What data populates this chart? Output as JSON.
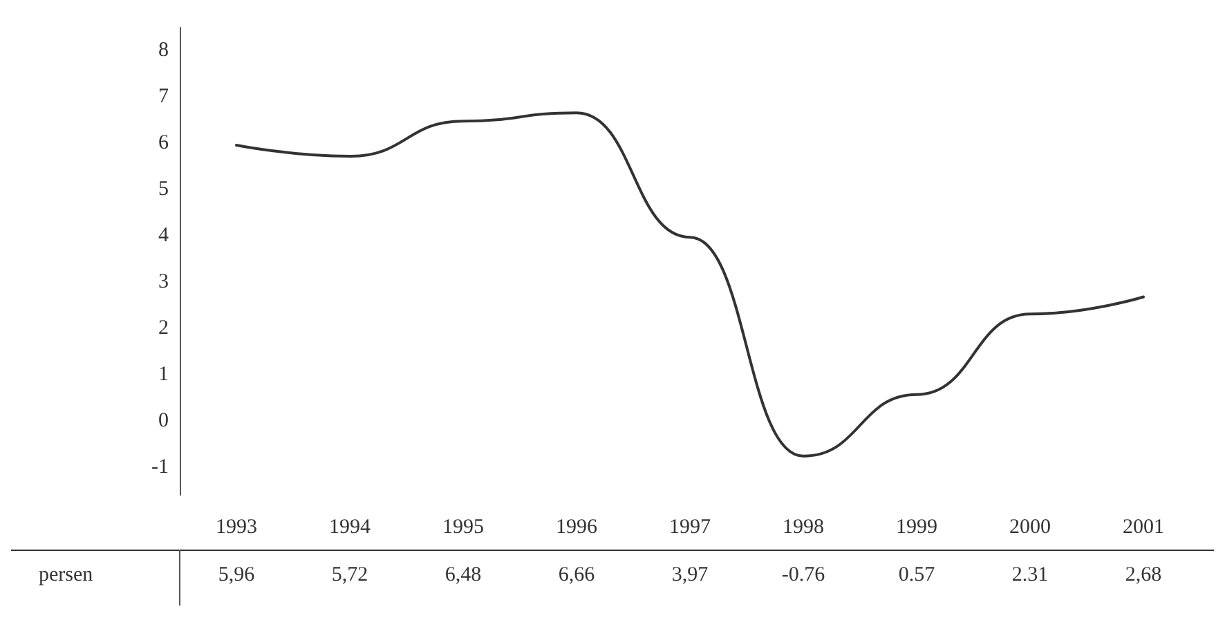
{
  "chart_data": {
    "type": "line",
    "categories": [
      "1993",
      "1994",
      "1995",
      "1996",
      "1997",
      "1998",
      "1999",
      "2000",
      "2001"
    ],
    "series": [
      {
        "name": "persen",
        "color": "#333333",
        "values": [
          5.96,
          5.72,
          6.48,
          6.66,
          3.97,
          -0.76,
          0.57,
          2.31,
          2.68
        ],
        "value_labels": [
          "5,96",
          "5,72",
          "6,48",
          "6,66",
          "3,97",
          "-0.76",
          "0.57",
          "2.31",
          "2,68"
        ]
      }
    ],
    "ylim": [
      -1.6,
      8.5
    ],
    "yticks": [
      -1,
      0,
      1,
      2,
      3,
      4,
      5,
      6,
      7,
      8
    ],
    "grid": false,
    "legend": false,
    "marker": "none",
    "line_style": "solid"
  }
}
